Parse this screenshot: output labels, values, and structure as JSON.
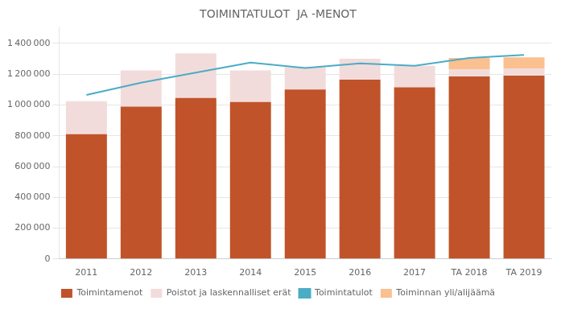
{
  "chart_data": {
    "type": "bar",
    "title": "TOIMINTATULOT  JA -MENOT",
    "categories": [
      "2011",
      "2012",
      "2013",
      "2014",
      "2015",
      "2016",
      "2017",
      "TA 2018",
      "TA 2019"
    ],
    "series": [
      {
        "name": "Toimintamenot",
        "type": "bar",
        "color": "#C0532A",
        "values": [
          810000,
          990000,
          1045000,
          1020000,
          1100000,
          1165000,
          1115000,
          1185000,
          1190000
        ]
      },
      {
        "name": "Poistot ja laskennalliset erät",
        "type": "bar",
        "color": "#F2DCDB",
        "values": [
          215000,
          235000,
          290000,
          205000,
          145000,
          135000,
          140000,
          45000,
          45000
        ]
      },
      {
        "name": "Toimintatulot",
        "type": "line",
        "color": "#4BACC6",
        "values": [
          1065000,
          1145000,
          1210000,
          1275000,
          1240000,
          1270000,
          1255000,
          1305000,
          1325000
        ]
      },
      {
        "name": "Toiminnan yli/alijäämä",
        "type": "bar",
        "color": "#FAC090",
        "values": [
          0,
          0,
          0,
          0,
          0,
          0,
          0,
          75000,
          75000
        ]
      }
    ],
    "ylim": [
      0,
      1500000
    ],
    "yticks": [
      0,
      {
        "value": 200000,
        "label": "200 000"
      },
      {
        "value": 400000,
        "label": "400 000"
      },
      {
        "value": 600000,
        "label": "600 000"
      },
      {
        "value": 800000,
        "label": "800 000"
      },
      {
        "value": 1000000,
        "label": "1 000 000"
      },
      {
        "value": 1200000,
        "label": "1 200 000"
      },
      {
        "value": 1400000,
        "label": "1 400 000"
      }
    ],
    "grid": true,
    "legend": "bottom",
    "stacked": true
  }
}
